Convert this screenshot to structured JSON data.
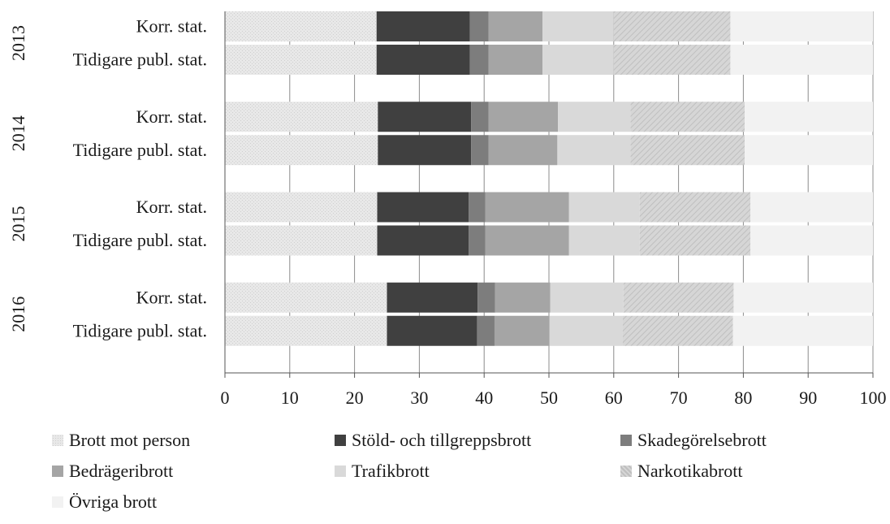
{
  "chart_data": {
    "type": "bar",
    "orientation": "horizontal",
    "stacked": true,
    "title": "",
    "xlabel": "",
    "ylabel": "",
    "xlim": [
      0,
      100
    ],
    "x_ticks": [
      "0",
      "10",
      "20",
      "30",
      "40",
      "50",
      "60",
      "70",
      "80",
      "90",
      "100"
    ],
    "grid": true,
    "legend_position": "bottom",
    "groups": [
      {
        "label": "2013",
        "bars": [
          {
            "label": "Korr. stat.",
            "values": [
              23.4,
              14.4,
              2.9,
              8.3,
              11.0,
              18.0,
              22.0
            ]
          },
          {
            "label": "Tidigare publ. stat.",
            "values": [
              23.4,
              14.4,
              2.9,
              8.3,
              11.0,
              18.0,
              22.0
            ]
          }
        ]
      },
      {
        "label": "2014",
        "bars": [
          {
            "label": "Korr. stat.",
            "values": [
              23.6,
              14.4,
              2.7,
              10.7,
              11.2,
              17.6,
              19.8
            ]
          },
          {
            "label": "Tidigare publ. stat.",
            "values": [
              23.6,
              14.4,
              2.7,
              10.6,
              11.3,
              17.6,
              19.8
            ]
          }
        ]
      },
      {
        "label": "2015",
        "bars": [
          {
            "label": "Korr. stat.",
            "values": [
              23.5,
              14.1,
              2.6,
              12.9,
              10.9,
              17.1,
              18.9
            ]
          },
          {
            "label": "Tidigare publ. stat.",
            "values": [
              23.5,
              14.1,
              2.6,
              12.9,
              10.9,
              17.1,
              18.9
            ]
          }
        ]
      },
      {
        "label": "2016",
        "bars": [
          {
            "label": "Korr. stat.",
            "values": [
              25.0,
              14.0,
              2.7,
              8.5,
              11.3,
              17.0,
              21.5
            ]
          },
          {
            "label": "Tidigare publ. stat.",
            "values": [
              25.0,
              13.9,
              2.7,
              8.5,
              11.3,
              17.0,
              21.6
            ]
          }
        ]
      }
    ],
    "series": [
      {
        "name": "Brott mot person",
        "color": "#e6e6e6",
        "pattern": "dots"
      },
      {
        "name": "Stöld- och tillgreppsbrott",
        "color": "#404040",
        "pattern": "solid"
      },
      {
        "name": "Skadegörelsebrott",
        "color": "#7d7d7d",
        "pattern": "solid"
      },
      {
        "name": "Bedrägeribrott",
        "color": "#a5a5a5",
        "pattern": "solid"
      },
      {
        "name": "Trafikbrott",
        "color": "#d9d9d9",
        "pattern": "solid"
      },
      {
        "name": "Narkotikabrott",
        "color": "#d0d0d0",
        "pattern": "hatch"
      },
      {
        "name": "Övriga brott",
        "color": "#f2f2f2",
        "pattern": "solid"
      }
    ]
  }
}
